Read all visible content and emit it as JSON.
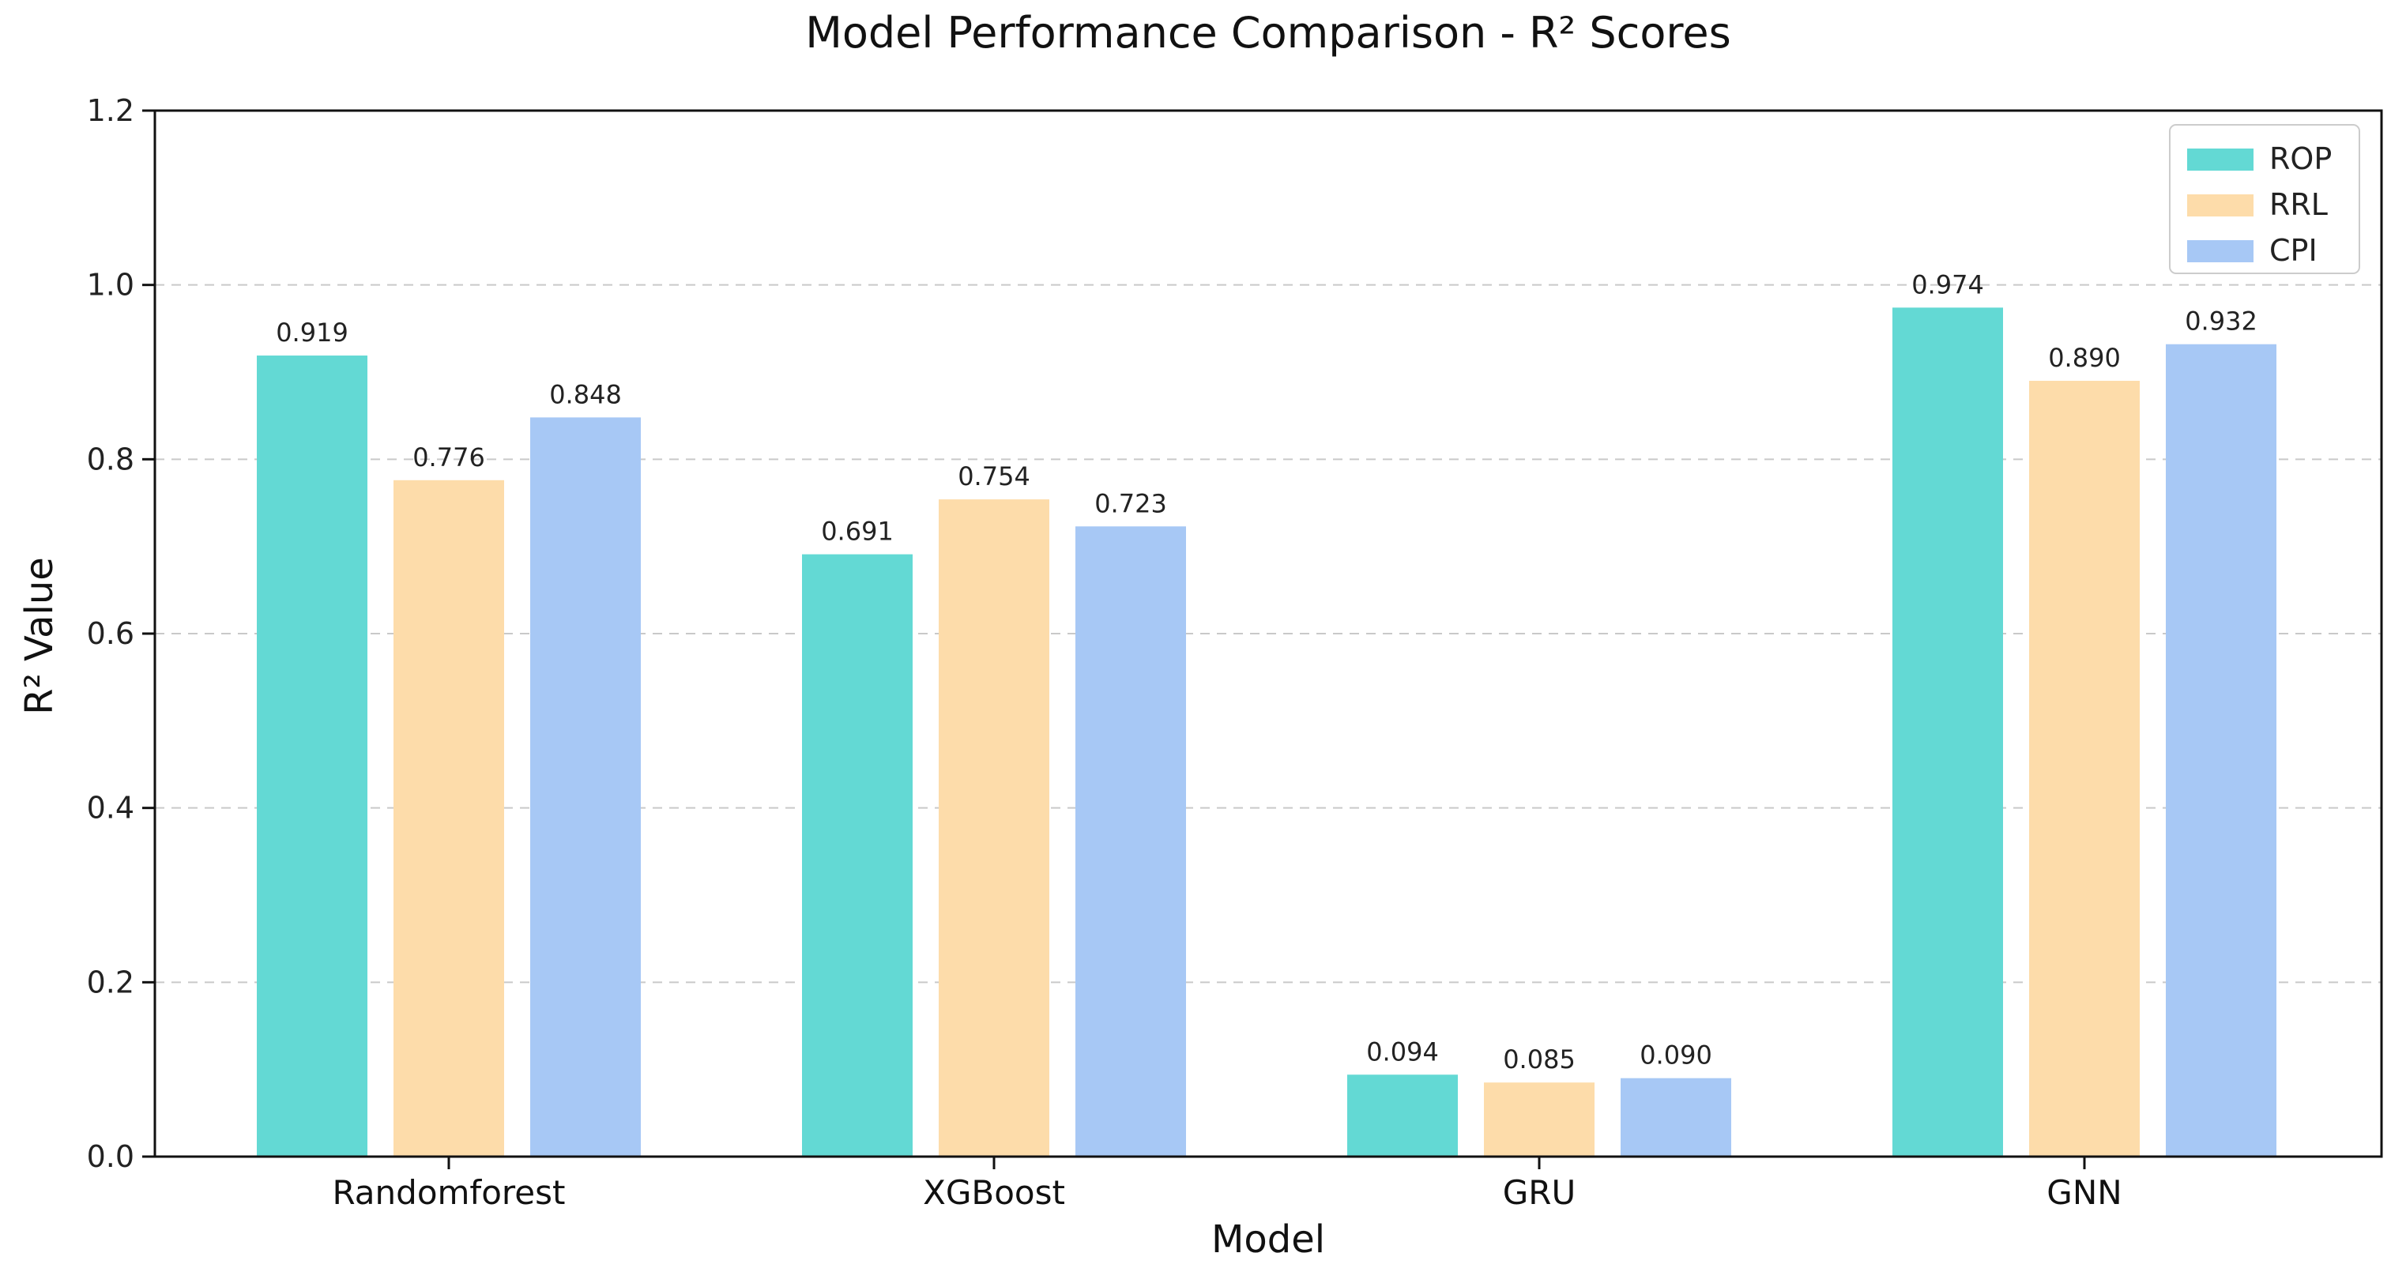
{
  "chart_data": {
    "type": "bar",
    "title": "Model Performance Comparison - R² Scores",
    "xlabel": "Model",
    "ylabel": "R² Value",
    "categories": [
      "Randomforest",
      "XGBoost",
      "GRU",
      "GNN"
    ],
    "series": [
      {
        "name": "ROP",
        "color": "#63d9d4",
        "values": [
          0.919,
          0.691,
          0.094,
          0.974
        ]
      },
      {
        "name": "RRL",
        "color": "#fddcaa",
        "values": [
          0.776,
          0.754,
          0.085,
          0.89
        ]
      },
      {
        "name": "CPI",
        "color": "#a7c8f5",
        "values": [
          0.848,
          0.723,
          0.09,
          0.932
        ]
      }
    ],
    "ylim": [
      0,
      1.2
    ],
    "yticks": [
      "0.0",
      "0.2",
      "0.4",
      "0.6",
      "0.8",
      "1.0",
      "1.2"
    ],
    "grid": true,
    "legend_position": "top-right",
    "value_format_decimals": 3
  }
}
